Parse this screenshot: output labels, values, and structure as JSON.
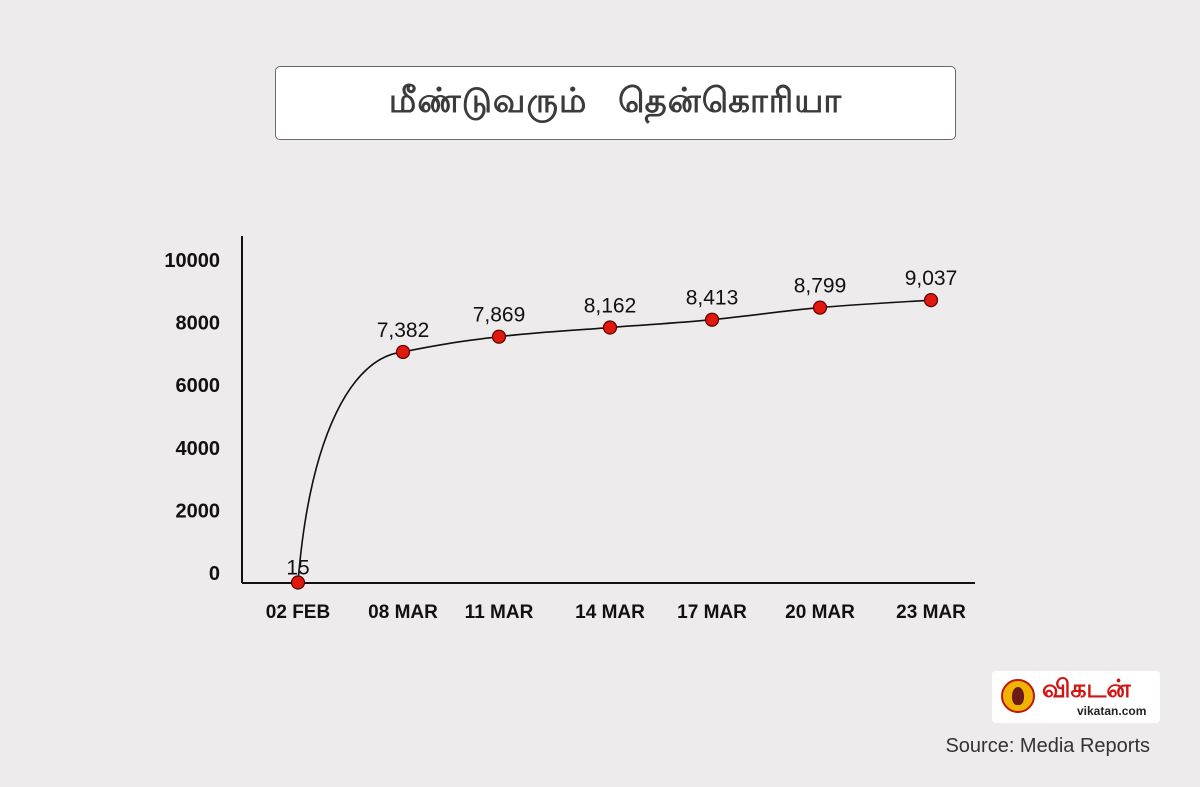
{
  "title": "மீண்டுவரும் தென்கொரியா",
  "source": "Source: Media Reports",
  "logo": {
    "name": "விகடன்",
    "url": "vikatan.com"
  },
  "colors": {
    "background": "#edebec",
    "point": "#e0190f",
    "line": "#111111"
  },
  "chart_data": {
    "type": "line",
    "title": "மீண்டுவரும் தென்கொரியா",
    "xlabel": "",
    "ylabel": "",
    "categories": [
      "02 FEB",
      "08 MAR",
      "11 MAR",
      "14 MAR",
      "17 MAR",
      "20 MAR",
      "23 MAR"
    ],
    "values": [
      15,
      7382,
      7869,
      8162,
      8413,
      8799,
      9037
    ],
    "data_labels": [
      "15",
      "7,382",
      "7,869",
      "8,162",
      "8,413",
      "8,799",
      "9,037"
    ],
    "y_ticks": [
      0,
      2000,
      4000,
      6000,
      8000,
      10000
    ],
    "ylim": [
      0,
      11000
    ],
    "grid": false,
    "legend": "none"
  }
}
